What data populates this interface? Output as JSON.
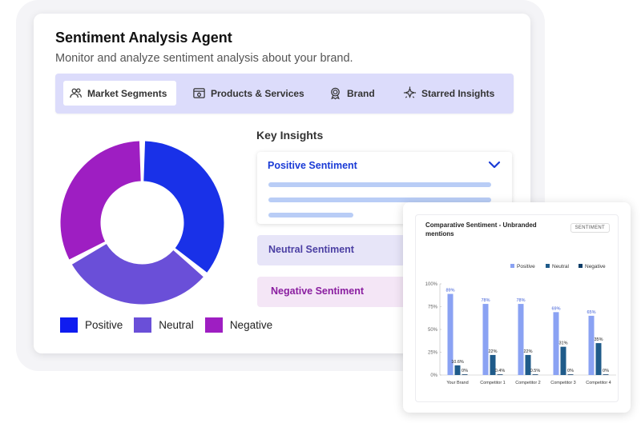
{
  "header": {
    "title": "Sentiment Analysis Agent",
    "subtitle": "Monitor and analyze sentiment analysis about your brand."
  },
  "tabs": [
    {
      "label": "Market Segments",
      "icon": "people-icon",
      "active": true
    },
    {
      "label": "Products & Services",
      "icon": "browser-window-icon",
      "active": false
    },
    {
      "label": "Brand",
      "icon": "award-badge-icon",
      "active": false
    },
    {
      "label": "Starred Insights",
      "icon": "sparkle-star-icon",
      "active": false
    }
  ],
  "legend": [
    {
      "label": "Positive",
      "color": "#0f1cf0"
    },
    {
      "label": "Neutral",
      "color": "#6a4fd8"
    },
    {
      "label": "Negative",
      "color": "#9e1ec2"
    }
  ],
  "key_insights": {
    "heading": "Key Insights",
    "positive": "Positive Sentiment",
    "neutral": "Neutral Sentiment",
    "negative": "Negative Sentiment"
  },
  "panel": {
    "title": "Comparative Sentiment - Unbranded mentions",
    "badge": "SENTIMENT"
  },
  "colors": {
    "positive_bar": "#8aa2f3",
    "neutral_bar": "#1f5b8a",
    "negative_bar": "#0e3d68"
  },
  "chart_data": [
    {
      "type": "pie",
      "slices": [
        {
          "name": "Positive",
          "value": 36,
          "color": "#1931e8"
        },
        {
          "name": "Neutral",
          "value": 31,
          "color": "#6a4fd8"
        },
        {
          "name": "Negative",
          "value": 33,
          "color": "#9e1ec2"
        }
      ]
    },
    {
      "type": "bar",
      "title": "Comparative Sentiment - Unbranded mentions",
      "categories": [
        "Your Brand",
        "Competitor 1",
        "Competitor 2",
        "Competitor 3",
        "Competitor 4"
      ],
      "series": [
        {
          "name": "Positive",
          "values": [
            89,
            78,
            78,
            69,
            65
          ],
          "labels": [
            "89%",
            "78%",
            "78%",
            "69%",
            "65%"
          ]
        },
        {
          "name": "Neutral",
          "values": [
            10.6,
            22,
            22,
            31,
            35
          ],
          "labels": [
            "10.6%",
            "22%",
            "22%",
            "31%",
            "35%"
          ]
        },
        {
          "name": "Negative",
          "values": [
            0,
            0.4,
            0.5,
            0,
            0
          ],
          "labels": [
            "0%",
            "0.4%",
            "0.5%",
            "0%",
            "0%"
          ]
        }
      ],
      "yticks": [
        "0%",
        "25%",
        "50%",
        "75%",
        "100%"
      ],
      "ylim": [
        0,
        100
      ],
      "legend": "top-right"
    }
  ]
}
